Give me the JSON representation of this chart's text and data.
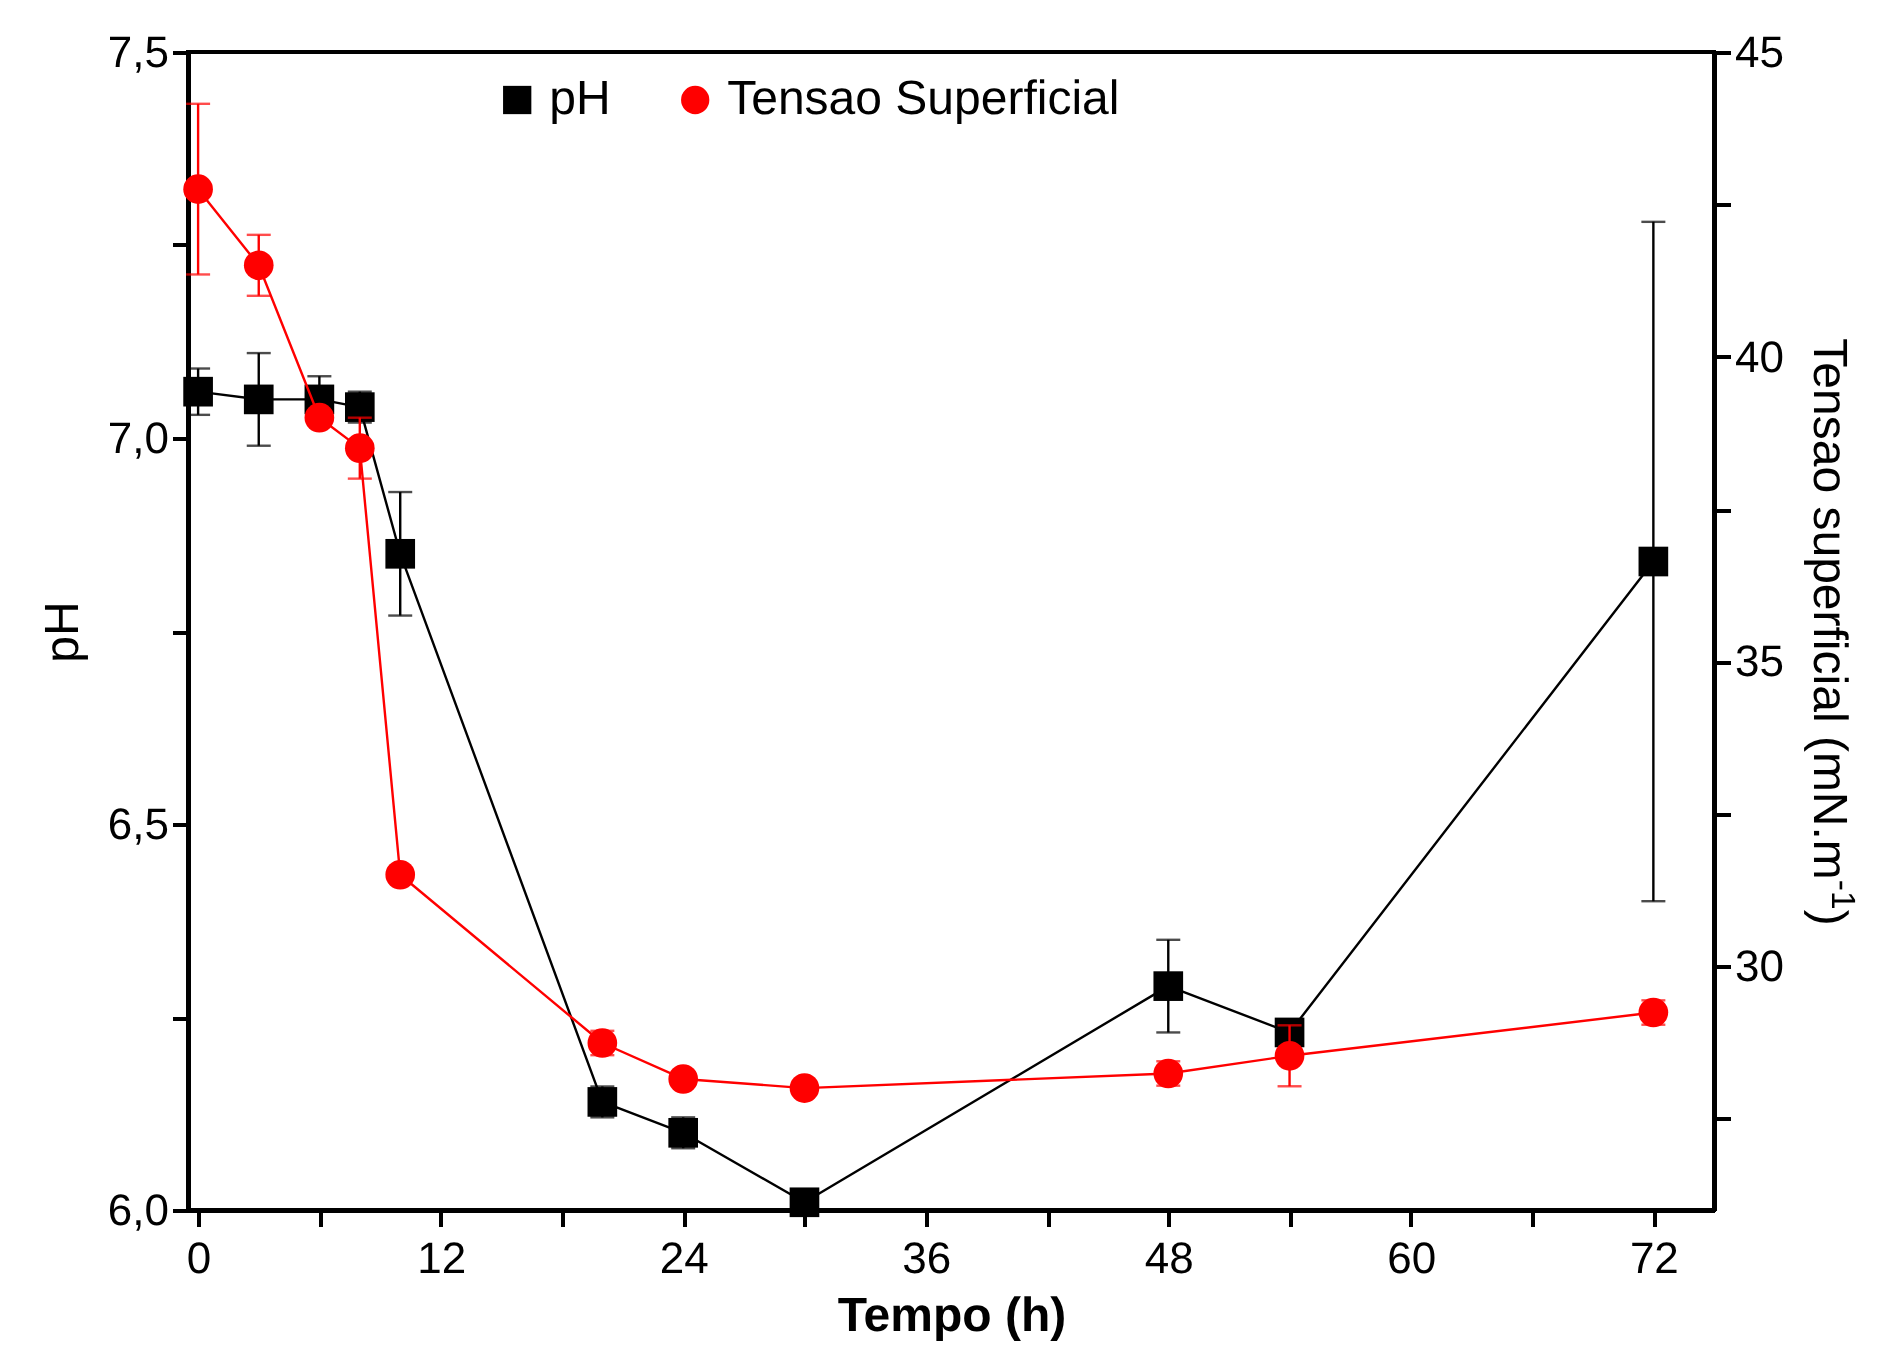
{
  "chart_data": {
    "type": "line",
    "xlabel": "Tempo (h)",
    "ylabel": "pH",
    "y2label": "Tensao superficial (mN.m$^{-1}$)",
    "x": [
      0,
      3,
      6,
      8,
      10,
      20,
      24,
      30,
      48,
      54,
      72
    ],
    "series": [
      {
        "name": "pH",
        "color": "#000000",
        "marker": "square",
        "values": [
          7.06,
          7.05,
          7.05,
          7.04,
          6.85,
          6.14,
          6.1,
          6.01,
          6.29,
          6.23,
          6.84
        ],
        "errors": [
          0.03,
          0.06,
          0.03,
          0.02,
          0.08,
          0.02,
          0.02,
          null,
          0.06,
          0.01,
          0.44
        ]
      },
      {
        "name": "Tensao Superficial",
        "color": "#ff0000",
        "marker": "circle",
        "axis": "y2",
        "values": [
          42.75,
          41.5,
          39.0,
          38.5,
          31.5,
          28.74,
          28.15,
          28.0,
          28.24,
          28.53,
          29.24
        ],
        "errors": [
          1.4,
          0.5,
          null,
          0.5,
          null,
          0.2,
          null,
          null,
          0.2,
          0.5,
          0.2
        ]
      }
    ],
    "xlim": [
      -0.5,
      75
    ],
    "xticks": [
      0,
      {
        "value": 6,
        "label": null
      },
      12,
      {
        "value": 18,
        "label": null
      },
      24,
      {
        "value": 30,
        "label": null
      },
      36,
      {
        "value": 42,
        "label": null
      },
      48,
      {
        "value": 54,
        "label": null
      },
      60,
      {
        "value": 66,
        "label": null
      },
      72
    ],
    "ylim": [
      6.0,
      7.5
    ],
    "yticks": [
      {
        "value": 6.0,
        "label": "6,0"
      },
      {
        "value": 6.25,
        "label": null
      },
      {
        "value": 6.5,
        "label": "6,5"
      },
      {
        "value": 6.75,
        "label": null
      },
      {
        "value": 7.0,
        "label": "7,0"
      },
      {
        "value": 7.25,
        "label": null
      },
      {
        "value": 7.5,
        "label": "7,5"
      }
    ],
    "y2lim": [
      26,
      45
    ],
    "y2ticks": [
      {
        "value": 27.5,
        "label": null
      },
      30,
      {
        "value": 32.5,
        "label": null
      },
      35,
      {
        "value": 37.5,
        "label": null
      },
      40,
      {
        "value": 42.5,
        "label": null
      },
      45
    ],
    "legend": "top",
    "grid": false
  }
}
